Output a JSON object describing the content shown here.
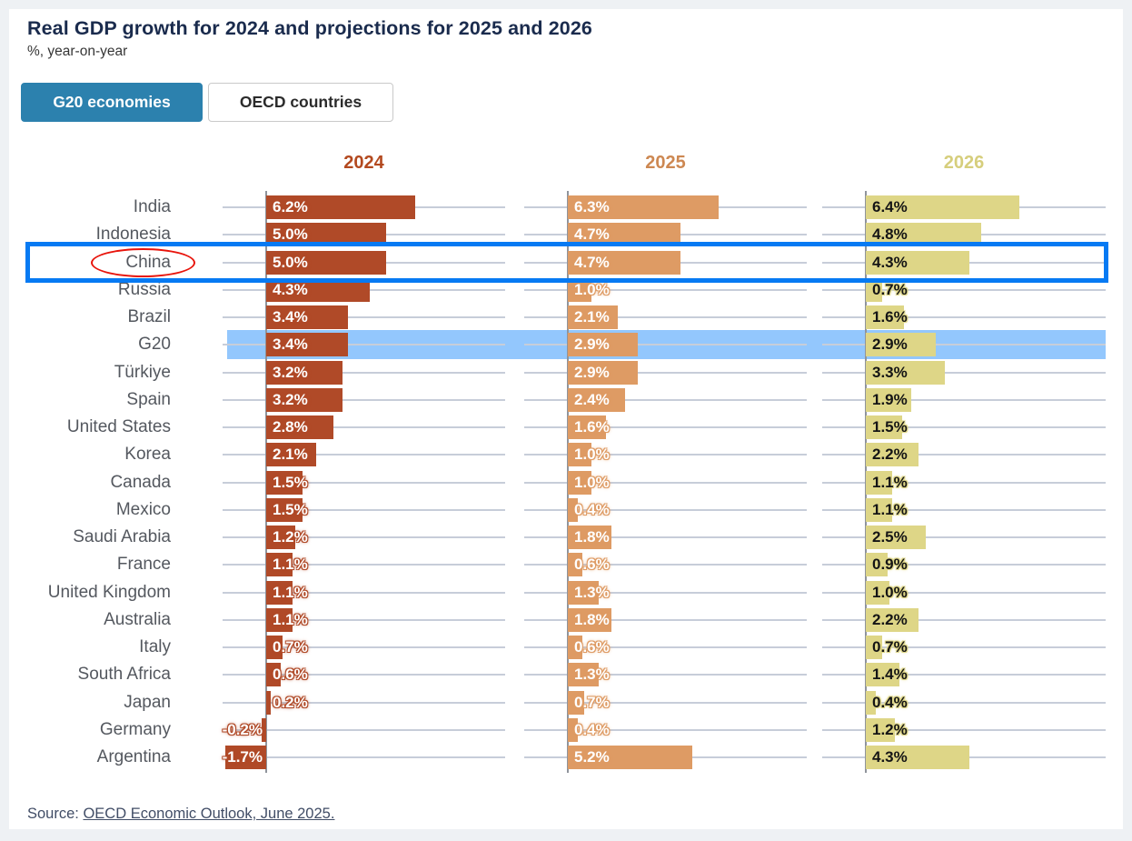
{
  "header": {
    "title": "Real GDP growth for 2024 and projections for 2025 and 2026",
    "subtitle": "%, year-on-year"
  },
  "tabs": [
    {
      "label": "G20 economies",
      "active": true
    },
    {
      "label": "OECD countries",
      "active": false
    }
  ],
  "source": {
    "prefix": "Source: ",
    "link": "OECD Economic Outlook, June 2025."
  },
  "colors": {
    "bar_2024": "#b04a28",
    "bar_2025": "#de9b64",
    "bar_2026": "#ded687",
    "header_2024": "#b3491f",
    "header_2025": "#cd8852",
    "header_2026": "#d6ce7c",
    "highlight_band": "#93c7fd",
    "highlight_box_border": "#077af3",
    "ellipse_stroke": "#e8140b",
    "tab_active_bg": "#2c81ae",
    "gridline": "#c7cdd9",
    "axis": "#8f949c",
    "title_text": "#1a2b4d",
    "country_label_text": "#54585f"
  },
  "chart_data": {
    "type": "bar",
    "orientation": "horizontal",
    "title": "Real GDP growth for 2024 and projections for 2025 and 2026",
    "value_unit": "%",
    "grid": true,
    "xlim_per_panel": [
      -1.8,
      10.0
    ],
    "categories": [
      "India",
      "Indonesia",
      "China",
      "Russia",
      "Brazil",
      "G20",
      "Türkiye",
      "Spain",
      "United States",
      "Korea",
      "Canada",
      "Mexico",
      "Saudi Arabia",
      "France",
      "United Kingdom",
      "Australia",
      "Italy",
      "South Africa",
      "Japan",
      "Germany",
      "Argentina"
    ],
    "series": [
      {
        "name": "2024",
        "values": [
          6.2,
          5.0,
          5.0,
          4.3,
          3.4,
          3.4,
          3.2,
          3.2,
          2.8,
          2.1,
          1.5,
          1.5,
          1.2,
          1.1,
          1.1,
          1.1,
          0.7,
          0.6,
          0.2,
          -0.2,
          -1.7
        ]
      },
      {
        "name": "2025",
        "values": [
          6.3,
          4.7,
          4.7,
          1.0,
          2.1,
          2.9,
          2.9,
          2.4,
          1.6,
          1.0,
          1.0,
          0.4,
          1.8,
          0.6,
          1.3,
          1.8,
          0.6,
          1.3,
          0.7,
          0.4,
          5.2
        ]
      },
      {
        "name": "2026",
        "values": [
          6.4,
          4.8,
          4.3,
          0.7,
          1.6,
          2.9,
          3.3,
          1.9,
          1.5,
          2.2,
          1.1,
          1.1,
          2.5,
          0.9,
          1.0,
          2.2,
          0.7,
          1.4,
          0.4,
          1.2,
          4.3
        ]
      }
    ],
    "annotations": {
      "highlighted_band_row": "G20",
      "boxed_row": "China",
      "circled_label": "China"
    }
  }
}
